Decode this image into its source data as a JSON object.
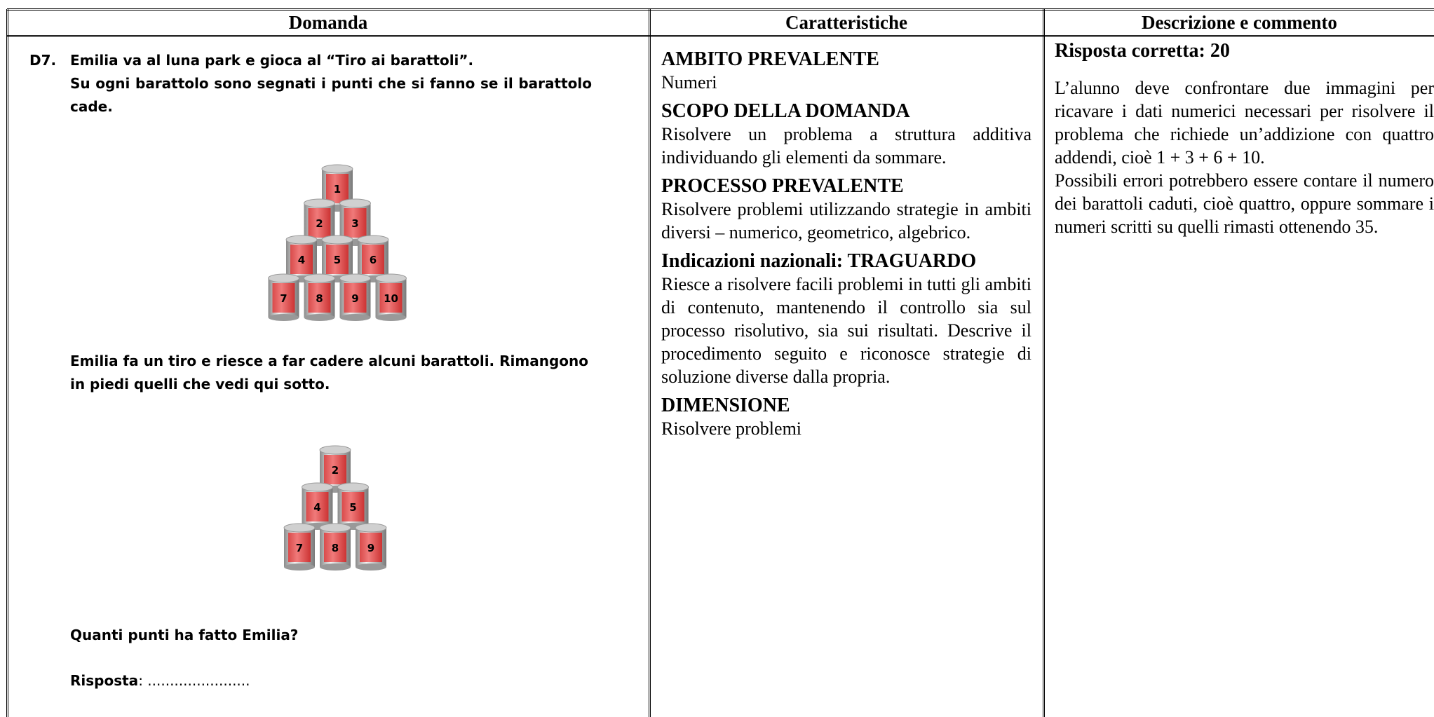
{
  "header": [
    "Domanda",
    "Caratteristiche",
    "Descrizione e commento"
  ],
  "question": {
    "number": "D7.",
    "intro": [
      "Emilia va al luna park e gioca al “Tiro ai barattoli”.",
      "Su ogni barattolo sono segnati i punti che si fanno se il barattolo cade."
    ],
    "cans_before": [
      [
        1
      ],
      [
        2,
        3
      ],
      [
        4,
        5,
        6
      ],
      [
        7,
        8,
        9,
        10
      ]
    ],
    "middle": "Emilia fa un tiro e riesce a far cadere alcuni barattoli. Rimangono in piedi quelli che vedi qui sotto.",
    "cans_after": [
      [
        2
      ],
      [
        4,
        5
      ],
      [
        7,
        8,
        9
      ]
    ],
    "ask": "Quanti punti ha fatto Emilia?",
    "answer_label": "Risposta",
    "answer_blank": ": ......................."
  },
  "characteristics": [
    {
      "heading": "AMBITO PREVALENTE",
      "body": "Numeri"
    },
    {
      "heading": "SCOPO DELLA DOMANDA",
      "body": "Risolvere un problema a struttura additiva individuando gli elementi da sommare."
    },
    {
      "heading": "PROCESSO PREVALENTE",
      "body": "Risolvere problemi utilizzando strategie in ambiti diversi – numerico, geometrico, algebrico."
    },
    {
      "heading": "Indicazioni nazionali: TRAGUARDO",
      "body": "Riesce a risolvere facili problemi in tutti gli ambiti di contenuto, mantenendo il controllo sia sul processo risolutivo, sia sui risultati. Descrive il procedimento seguito e riconosce strategie di soluzione diverse dalla propria."
    },
    {
      "heading": "DIMENSIONE",
      "body": "Risolvere problemi"
    }
  ],
  "description": {
    "heading": "Risposta corretta: 20",
    "paragraphs": [
      "L’alunno deve confrontare due immagini per ricavare i dati numerici necessari per risolvere il problema che richiede un’addizione con quattro addendi, cioè 1 + 3 + 6 + 10.",
      "Possibili errori potrebbero essere contare il numero dei barattoli caduti, cioè quattro, oppure sommare i numeri scritti su quelli rimasti ottenendo 35."
    ]
  }
}
